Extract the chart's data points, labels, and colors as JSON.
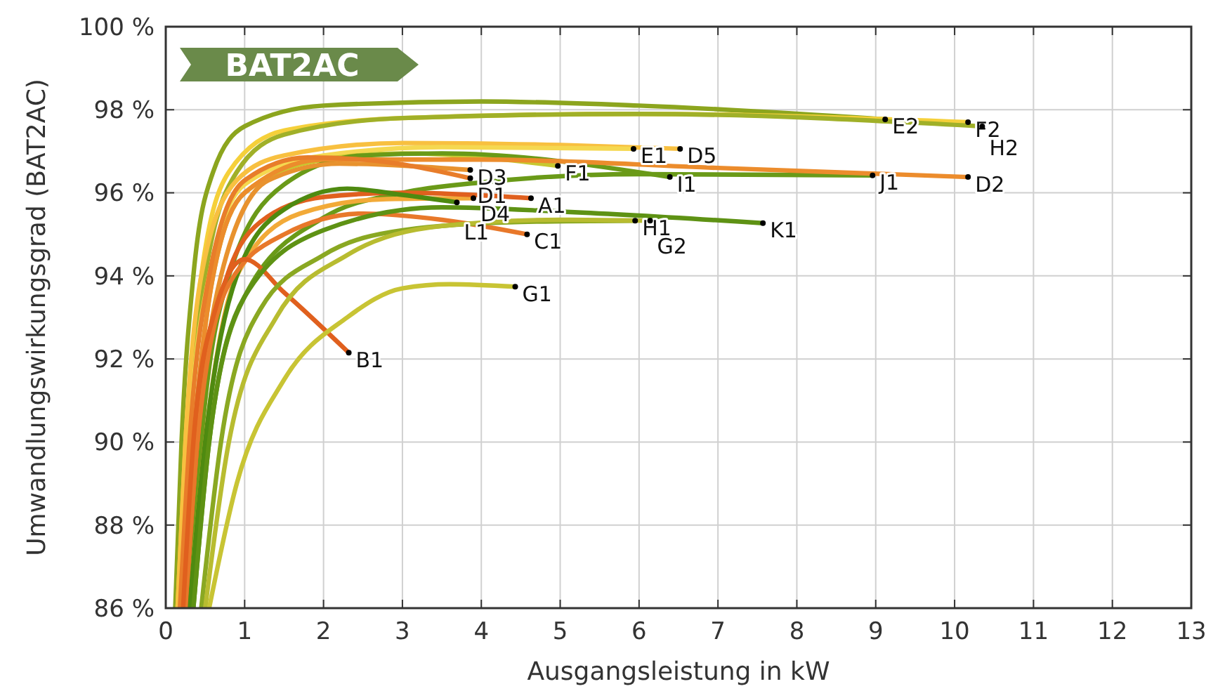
{
  "chart_data": {
    "type": "line",
    "title": "BAT2AC",
    "xlabel": "Ausgangsleistung in kW",
    "ylabel": "Umwandlungswirkungsgrad (BAT2AC)",
    "xlim": [
      0,
      13
    ],
    "xticks": [
      0,
      1,
      2,
      3,
      4,
      5,
      6,
      7,
      8,
      9,
      10,
      11,
      12,
      13
    ],
    "ylim": [
      86,
      100
    ],
    "yticks": [
      {
        "value": 86,
        "label": "86 %"
      },
      {
        "value": 88,
        "label": "88 %"
      },
      {
        "value": 90,
        "label": "90 %"
      },
      {
        "value": 92,
        "label": "92 %"
      },
      {
        "value": 94,
        "label": "94 %"
      },
      {
        "value": 96,
        "label": "96 %"
      },
      {
        "value": 98,
        "label": "98 %"
      },
      {
        "value": 100,
        "label": "100 %"
      }
    ],
    "grid": true,
    "line_style": "solid",
    "series": [
      {
        "name": "E2",
        "color": "#8ca51e",
        "x": [
          0.12,
          0.2,
          0.35,
          0.6,
          1.0,
          2,
          4,
          6,
          9.12
        ],
        "values": [
          86,
          90,
          94,
          96.5,
          97.6,
          98.1,
          98.2,
          98.1,
          97.77
        ]
      },
      {
        "name": "F2",
        "color": "#f5d03a",
        "x": [
          0.15,
          0.25,
          0.45,
          0.8,
          1.5,
          3,
          6,
          10.17
        ],
        "values": [
          86,
          90,
          94,
          96.5,
          97.5,
          97.8,
          97.9,
          97.7
        ]
      },
      {
        "name": "H2",
        "color": "#a0b028",
        "x": [
          0.2,
          0.3,
          0.5,
          0.9,
          1.5,
          3,
          6,
          10.35
        ],
        "values": [
          86,
          90,
          94,
          96.5,
          97.4,
          97.8,
          97.9,
          97.6
        ]
      },
      {
        "name": "D5",
        "color": "#f8c040",
        "x": [
          0.15,
          0.25,
          0.45,
          0.9,
          1.5,
          3,
          5,
          6.52
        ],
        "values": [
          86,
          90,
          94,
          96.3,
          96.9,
          97.2,
          97.15,
          97.06
        ]
      },
      {
        "name": "E1",
        "color": "#f5d850",
        "x": [
          0.2,
          0.3,
          0.55,
          1,
          2,
          3.5,
          5.93
        ],
        "values": [
          86,
          90,
          94,
          96.2,
          96.9,
          97.1,
          97.06
        ]
      },
      {
        "name": "F1",
        "color": "#c8c830",
        "x": [
          0.2,
          0.35,
          0.6,
          1,
          2,
          3,
          4.97
        ],
        "values": [
          86,
          90,
          94,
          96,
          96.8,
          96.95,
          96.65
        ]
      },
      {
        "name": "I1",
        "color": "#6a9a18",
        "x": [
          0.3,
          0.45,
          0.8,
          1.5,
          2.5,
          3.5,
          6.39
        ],
        "values": [
          86,
          90,
          94,
          96.2,
          96.9,
          96.95,
          96.38
        ]
      },
      {
        "name": "J1",
        "color": "#6a9a18",
        "x": [
          0.35,
          0.55,
          1,
          2,
          3,
          4,
          6,
          8.96
        ],
        "values": [
          86,
          90,
          93.5,
          95.4,
          96,
          96.25,
          96.45,
          96.42
        ]
      },
      {
        "name": "D2",
        "color": "#ec8c2c",
        "x": [
          0.2,
          0.35,
          0.6,
          1,
          2,
          4,
          7,
          10.17
        ],
        "values": [
          86,
          90,
          94,
          96,
          96.8,
          96.8,
          96.6,
          96.38
        ]
      },
      {
        "name": "D3",
        "color": "#e8922e",
        "x": [
          0.25,
          0.4,
          0.7,
          1.3,
          2.2,
          3.86
        ],
        "values": [
          86,
          90,
          94,
          96.3,
          96.7,
          96.55
        ]
      },
      {
        "name": "D1",
        "color": "#e87d2a",
        "x": [
          0.18,
          0.3,
          0.55,
          1,
          1.8,
          2.5,
          3.86
        ],
        "values": [
          86,
          90,
          94,
          96.3,
          96.85,
          96.8,
          96.35
        ]
      },
      {
        "name": "D4",
        "color": "#f2aa38",
        "x": [
          0.3,
          0.5,
          0.9,
          1.7,
          2.8,
          3.9
        ],
        "values": [
          86,
          90,
          94,
          95.5,
          95.85,
          95.87
        ]
      },
      {
        "name": "A1",
        "color": "#e0601e",
        "x": [
          0.25,
          0.4,
          0.7,
          1.2,
          2,
          3,
          4.63
        ],
        "values": [
          86,
          90,
          93.5,
          95.3,
          95.9,
          96,
          95.87
        ]
      },
      {
        "name": "L1",
        "color": "#4e8a10",
        "x": [
          0.3,
          0.5,
          0.9,
          1.5,
          2.3,
          3,
          3.69
        ],
        "values": [
          86,
          90,
          94,
          95.6,
          96.1,
          95.95,
          95.77
        ]
      },
      {
        "name": "C1",
        "color": "#e8782a",
        "x": [
          0.25,
          0.4,
          0.8,
          1.5,
          2.5,
          3.5,
          4.58
        ],
        "values": [
          86,
          90,
          93.8,
          95,
          95.5,
          95.35,
          95.0
        ]
      },
      {
        "name": "B1",
        "color": "#e0601e",
        "x": [
          0.22,
          0.35,
          0.6,
          1,
          1.5,
          2.32
        ],
        "values": [
          86,
          90,
          93,
          94.4,
          93.6,
          92.15
        ]
      },
      {
        "name": "K1",
        "color": "#5e9214",
        "x": [
          0.35,
          0.55,
          1,
          2,
          3.5,
          5,
          7.57
        ],
        "values": [
          86,
          90,
          93.5,
          95.1,
          95.65,
          95.55,
          95.27
        ]
      },
      {
        "name": "H1",
        "color": "#8aa822",
        "x": [
          0.45,
          0.7,
          1.2,
          2,
          3,
          4.5,
          5.95
        ],
        "values": [
          86,
          90,
          93.2,
          94.5,
          95.1,
          95.3,
          95.33
        ]
      },
      {
        "name": "G2",
        "color": "#b8bc30",
        "x": [
          0.5,
          0.8,
          1.4,
          2.3,
          3.5,
          5,
          6.14
        ],
        "values": [
          86,
          90,
          93,
          94.5,
          95.2,
          95.35,
          95.33
        ]
      },
      {
        "name": "G1",
        "color": "#c8c434",
        "x": [
          0.55,
          0.9,
          1.5,
          2.3,
          3,
          3.6,
          4.43
        ],
        "values": [
          86,
          89,
          91.5,
          93,
          93.7,
          93.8,
          93.74
        ]
      }
    ]
  }
}
